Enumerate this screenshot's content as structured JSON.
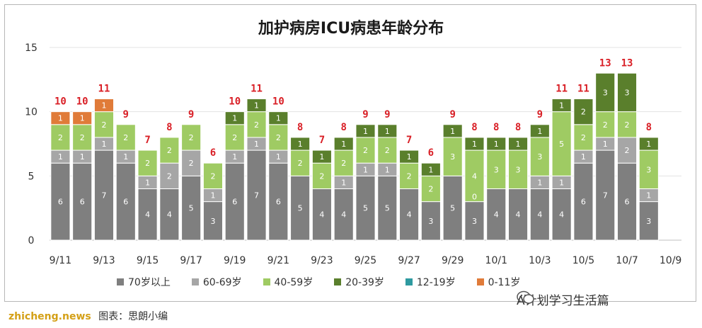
{
  "chart_data": {
    "type": "bar",
    "stacked": true,
    "title": "加护病房ICU病患年龄分布",
    "x": [
      "9/11",
      "9/12",
      "9/13",
      "9/14",
      "9/15",
      "9/16",
      "9/17",
      "9/18",
      "9/19",
      "9/20",
      "9/21",
      "9/22",
      "9/23",
      "9/24",
      "9/25",
      "9/26",
      "9/27",
      "9/28",
      "9/29",
      "9/30",
      "10/1",
      "10/2",
      "10/3",
      "10/4",
      "10/5",
      "10/6",
      "10/7",
      "10/8"
    ],
    "tick_labels": [
      "9/11",
      "9/13",
      "9/15",
      "9/17",
      "9/19",
      "9/21",
      "9/23",
      "9/25",
      "9/27",
      "9/29",
      "10/1",
      "10/3",
      "10/5",
      "10/7",
      "10/9"
    ],
    "ylim": [
      0,
      15
    ],
    "yticks": [
      0,
      5,
      10,
      15
    ],
    "grid": true,
    "legend_position": "bottom",
    "series": [
      {
        "name": "70岁以上",
        "color": "#7f7f7f",
        "values": [
          6,
          6,
          7,
          6,
          4,
          4,
          5,
          3,
          6,
          7,
          6,
          5,
          4,
          4,
          5,
          5,
          4,
          3,
          5,
          3,
          4,
          4,
          4,
          4,
          6,
          7,
          6,
          3
        ]
      },
      {
        "name": "60-69岁",
        "color": "#a6a6a6",
        "values": [
          1,
          1,
          1,
          1,
          1,
          2,
          2,
          1,
          1,
          1,
          1,
          0,
          0,
          1,
          1,
          1,
          0,
          0,
          0,
          0,
          0,
          0,
          1,
          1,
          1,
          1,
          2,
          1
        ]
      },
      {
        "name": "40-59岁",
        "color": "#9fcb63",
        "values": [
          2,
          2,
          2,
          2,
          2,
          2,
          2,
          2,
          2,
          2,
          2,
          2,
          2,
          2,
          2,
          2,
          2,
          2,
          3,
          4,
          3,
          3,
          3,
          5,
          2,
          2,
          2,
          3
        ]
      },
      {
        "name": "20-39岁",
        "color": "#5a7f2c",
        "values": [
          0,
          0,
          0,
          0,
          0,
          0,
          0,
          0,
          1,
          1,
          1,
          1,
          1,
          1,
          1,
          1,
          1,
          1,
          1,
          1,
          1,
          1,
          1,
          1,
          2,
          3,
          3,
          1
        ]
      },
      {
        "name": "12-19岁",
        "color": "#2e9aa0",
        "values": [
          0,
          0,
          0,
          0,
          0,
          0,
          0,
          0,
          0,
          0,
          0,
          0,
          0,
          0,
          0,
          0,
          0,
          0,
          0,
          0,
          0,
          0,
          0,
          0,
          0,
          0,
          0,
          0
        ]
      },
      {
        "name": "0-11岁",
        "color": "#e07b39",
        "values": [
          1,
          1,
          1,
          0,
          0,
          0,
          0,
          0,
          0,
          0,
          0,
          0,
          0,
          0,
          0,
          0,
          0,
          0,
          0,
          0,
          0,
          0,
          0,
          0,
          0,
          0,
          0,
          0
        ]
      }
    ],
    "totals": [
      10,
      10,
      11,
      9,
      7,
      8,
      9,
      6,
      10,
      11,
      10,
      8,
      7,
      8,
      9,
      9,
      7,
      6,
      9,
      8,
      8,
      8,
      9,
      11,
      11,
      13,
      13,
      8
    ],
    "zero_labels": [
      {
        "index": 19,
        "series": 1,
        "text": "0"
      }
    ]
  },
  "footer": {
    "brand": "zhicheng.news",
    "caption": "图表：思朗小编",
    "watermark": "A计划学习生活篇"
  }
}
